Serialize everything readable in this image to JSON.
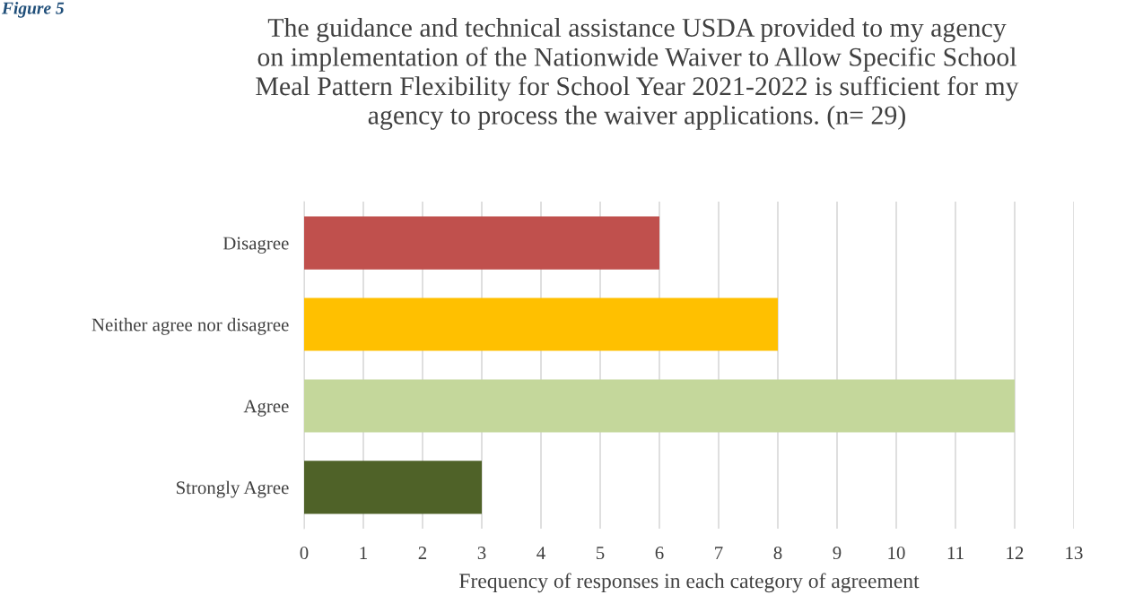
{
  "chart_data": {
    "type": "bar",
    "orientation": "horizontal",
    "title": "The guidance and technical assistance USDA provided to my agency\non implementation of the Nationwide Waiver to Allow Specific School\nMeal Pattern Flexibility for School Year 2021-2022 is sufficient for my\nagency to process the waiver applications. (n= 29)",
    "xlabel": "Frequency of responses in each category of agreement",
    "annotations": [
      "Figure 5"
    ],
    "categories": [
      "Disagree",
      "Neither agree nor disagree",
      "Agree",
      "Strongly Agree"
    ],
    "values": [
      6,
      8,
      12,
      3
    ],
    "colors": [
      "#c0504d",
      "#ffc000",
      "#c4d79b",
      "#4f6228"
    ],
    "xlim": [
      0,
      13
    ],
    "xticks": [
      0,
      1,
      2,
      3,
      4,
      5,
      6,
      7,
      8,
      9,
      10,
      11,
      12,
      13
    ],
    "grid": "x",
    "legend": false
  }
}
